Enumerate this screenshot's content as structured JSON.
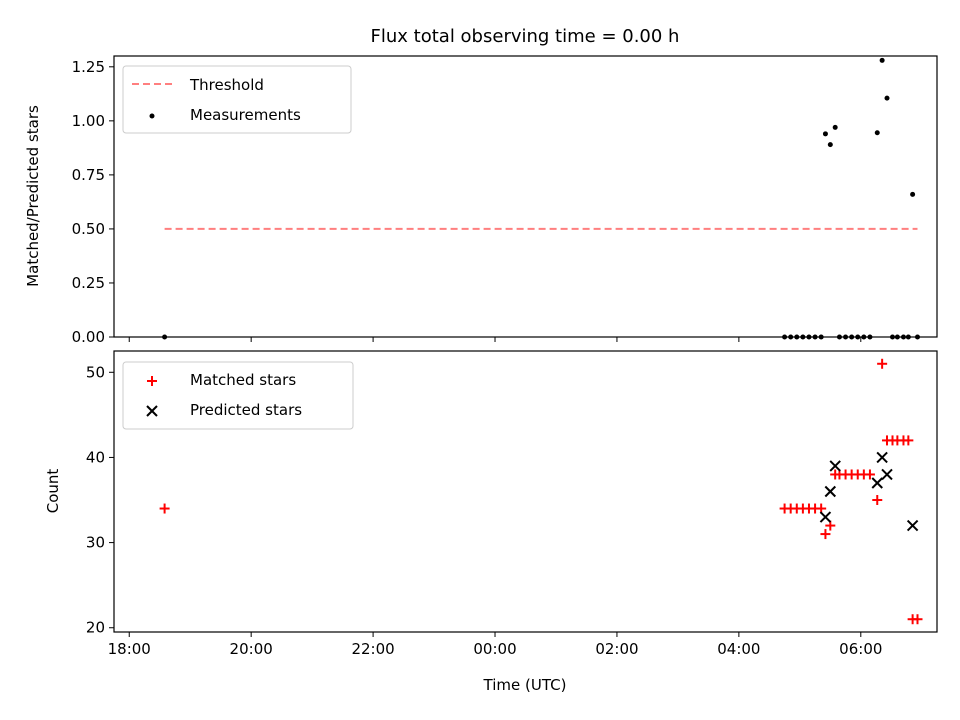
{
  "chart_data": [
    {
      "type": "scatter",
      "title": "Flux total observing time = 0.00 h",
      "xlabel": "",
      "ylabel": "Matched/Predicted stars",
      "xlim": [
        -0.25,
        13.25
      ],
      "ylim": [
        0,
        1.3
      ],
      "yticks": [
        0.0,
        0.25,
        0.5,
        0.75,
        1.0,
        1.25
      ],
      "ytick_labels": [
        "0.00",
        "0.25",
        "0.50",
        "0.75",
        "1.00",
        "1.25"
      ],
      "xticks": [
        0,
        2,
        4,
        6,
        8,
        10,
        12
      ],
      "grid": false,
      "legend_position": "top-left",
      "threshold": {
        "name": "Threshold",
        "color": "#ff7f7f",
        "style": "dashed",
        "value": 0.5,
        "x_range": [
          0.58,
          12.93
        ]
      },
      "series": [
        {
          "name": "Measurements",
          "color": "#000000",
          "marker": "dot",
          "points": [
            [
              0.58,
              0.0
            ],
            [
              10.75,
              0.0
            ],
            [
              10.85,
              0.0
            ],
            [
              10.95,
              0.0
            ],
            [
              11.05,
              0.0
            ],
            [
              11.15,
              0.0
            ],
            [
              11.25,
              0.0
            ],
            [
              11.35,
              0.0
            ],
            [
              11.42,
              0.94
            ],
            [
              11.5,
              0.89
            ],
            [
              11.58,
              0.97
            ],
            [
              11.65,
              0.0
            ],
            [
              11.75,
              0.0
            ],
            [
              11.85,
              0.0
            ],
            [
              11.95,
              0.0
            ],
            [
              12.05,
              0.0
            ],
            [
              12.15,
              0.0
            ],
            [
              12.27,
              0.945
            ],
            [
              12.35,
              1.28
            ],
            [
              12.43,
              1.105
            ],
            [
              12.52,
              0.0
            ],
            [
              12.6,
              0.0
            ],
            [
              12.7,
              0.0
            ],
            [
              12.78,
              0.0
            ],
            [
              12.85,
              0.66
            ],
            [
              12.93,
              0.0
            ]
          ]
        }
      ]
    },
    {
      "type": "scatter",
      "title": "",
      "xlabel": "Time (UTC)",
      "ylabel": "Count",
      "xlim": [
        -0.25,
        13.25
      ],
      "ylim": [
        19.5,
        52.5
      ],
      "yticks": [
        20,
        30,
        40,
        50
      ],
      "ytick_labels": [
        "20",
        "30",
        "40",
        "50"
      ],
      "xticks": [
        0,
        2,
        4,
        6,
        8,
        10,
        12
      ],
      "xtick_labels": [
        "18:00",
        "20:00",
        "22:00",
        "00:00",
        "02:00",
        "04:00",
        "06:00"
      ],
      "grid": false,
      "legend_position": "top-left",
      "series": [
        {
          "name": "Matched stars",
          "color": "#ff0000",
          "marker": "plus",
          "points": [
            [
              0.58,
              34
            ],
            [
              10.75,
              34
            ],
            [
              10.85,
              34
            ],
            [
              10.95,
              34
            ],
            [
              11.05,
              34
            ],
            [
              11.15,
              34
            ],
            [
              11.25,
              34
            ],
            [
              11.35,
              34
            ],
            [
              11.42,
              31
            ],
            [
              11.5,
              32
            ],
            [
              11.58,
              38
            ],
            [
              11.65,
              38
            ],
            [
              11.75,
              38
            ],
            [
              11.85,
              38
            ],
            [
              11.95,
              38
            ],
            [
              12.05,
              38
            ],
            [
              12.15,
              38
            ],
            [
              12.27,
              35
            ],
            [
              12.35,
              51
            ],
            [
              12.43,
              42
            ],
            [
              12.52,
              42
            ],
            [
              12.6,
              42
            ],
            [
              12.7,
              42
            ],
            [
              12.78,
              42
            ],
            [
              12.85,
              21
            ],
            [
              12.93,
              21
            ]
          ]
        },
        {
          "name": "Predicted stars",
          "color": "#000000",
          "marker": "x",
          "points": [
            [
              11.42,
              33
            ],
            [
              11.5,
              36
            ],
            [
              11.58,
              39
            ],
            [
              12.27,
              37
            ],
            [
              12.35,
              40
            ],
            [
              12.43,
              38
            ],
            [
              12.85,
              32
            ]
          ]
        }
      ]
    }
  ]
}
